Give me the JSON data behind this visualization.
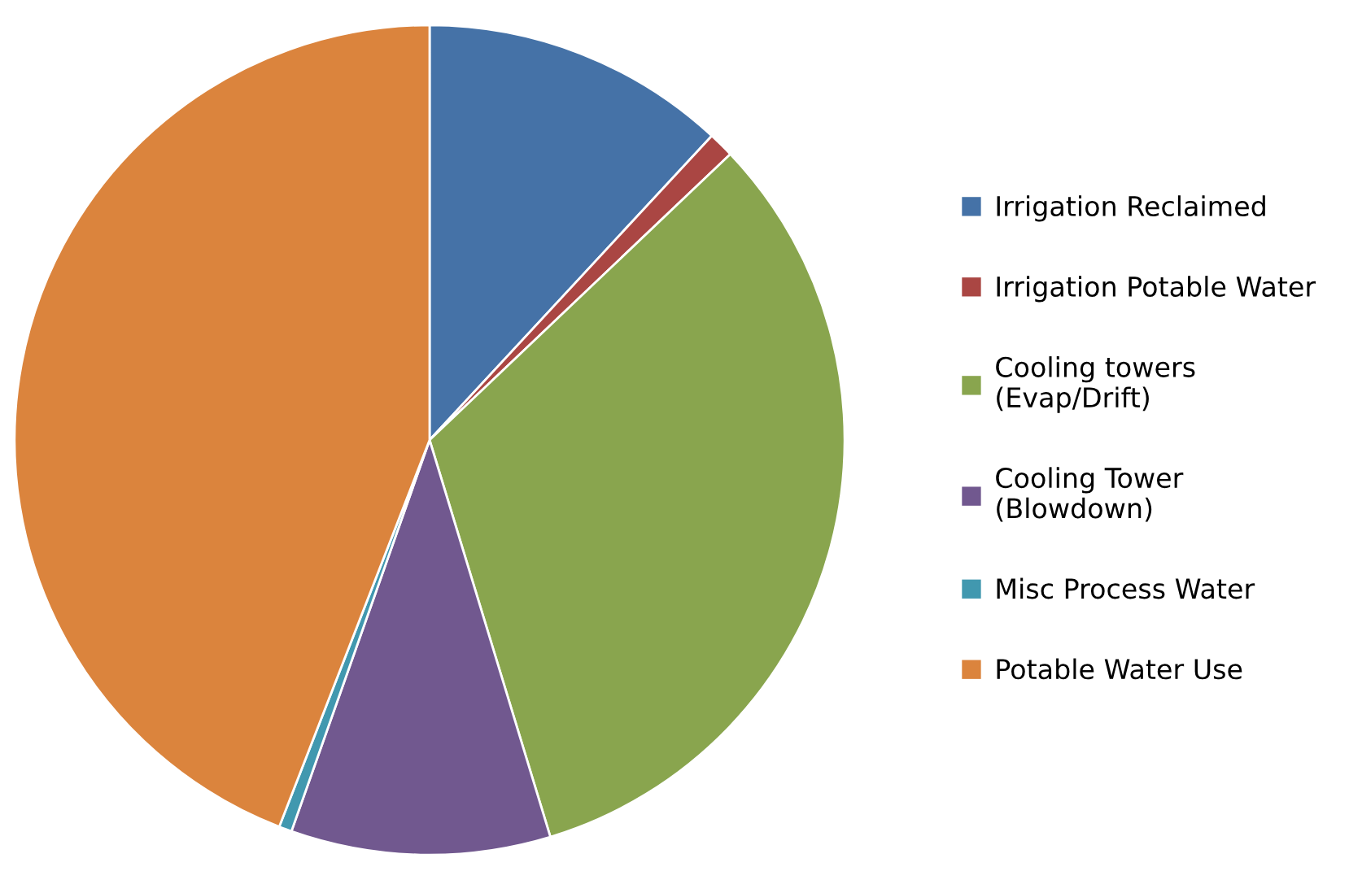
{
  "chart_data": {
    "type": "pie",
    "categories": [
      "Irrigation Reclaimed",
      "Irrigation Potable Water",
      "Cooling towers\n(Evap/Drift)",
      "Cooling Tower\n(Blowdown)",
      "Misc Process Water",
      "Potable Water Use"
    ],
    "values": [
      11.9,
      1.0,
      32.4,
      10.1,
      0.5,
      44.1
    ],
    "colors": [
      "#4572a7",
      "#aa4643",
      "#89a54e",
      "#71588f",
      "#4198af",
      "#db843d"
    ],
    "legend": "right"
  }
}
